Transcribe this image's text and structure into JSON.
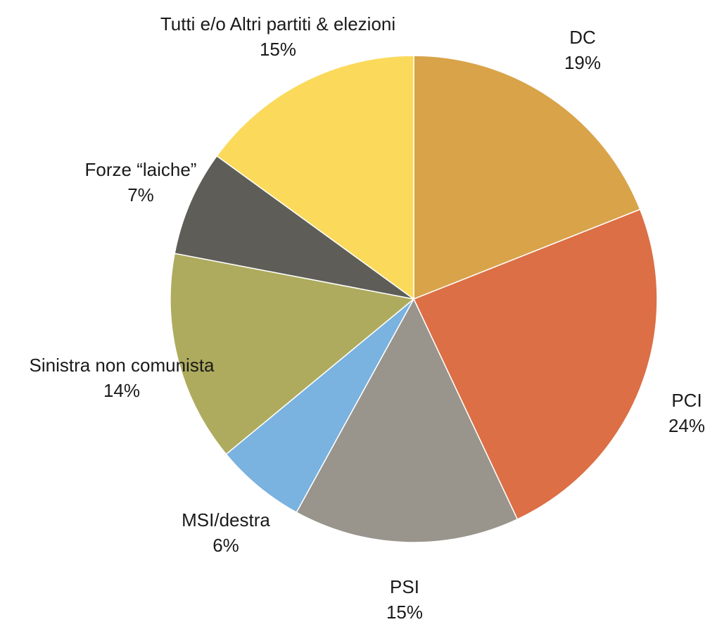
{
  "chart_data": {
    "type": "pie",
    "start_angle_deg": 0,
    "direction": "clockwise",
    "slices": [
      {
        "label": "DC",
        "value": 19,
        "value_label": "19%",
        "color": "#D9A34A"
      },
      {
        "label": "PCI",
        "value": 24,
        "value_label": "24%",
        "color": "#DC6F45"
      },
      {
        "label": "PSI",
        "value": 15,
        "value_label": "15%",
        "color": "#99948C"
      },
      {
        "label": "MSI/destra",
        "value": 6,
        "value_label": "6%",
        "color": "#7AB2E0"
      },
      {
        "label": "Sinistra non comunista",
        "value": 14,
        "value_label": "14%",
        "color": "#AEAB5E"
      },
      {
        "label": "Forze “laiche”",
        "value": 7,
        "value_label": "7%",
        "color": "#5E5D57"
      },
      {
        "label": "Tutti e/o Altri partiti & elezioni",
        "value": 15,
        "value_label": "15%",
        "color": "#FBD95A"
      }
    ]
  }
}
